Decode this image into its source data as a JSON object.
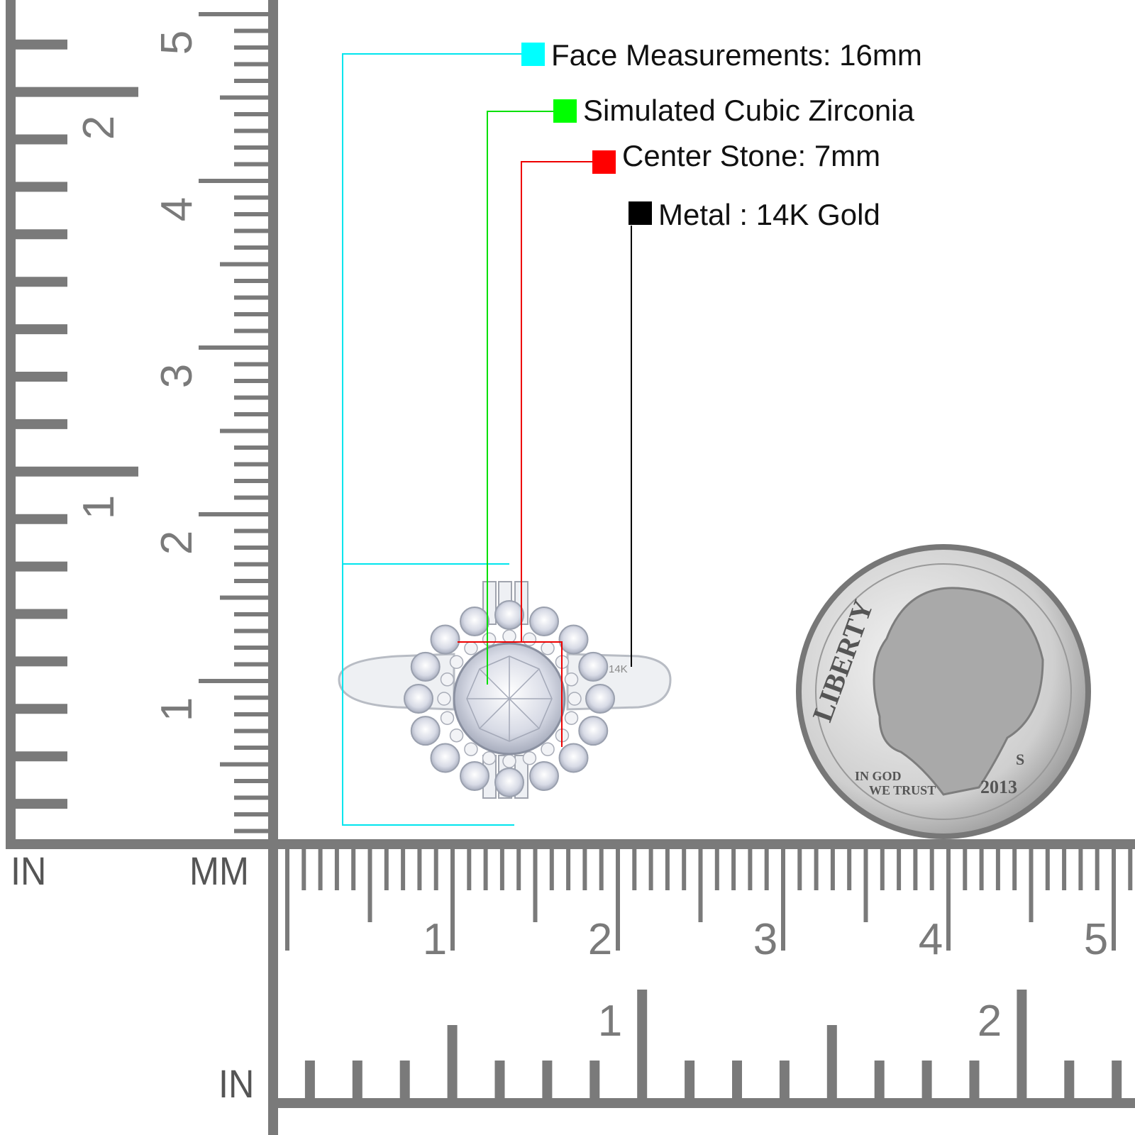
{
  "specs": [
    {
      "label": "Face Measurements: 16mm",
      "color": "#00ffff"
    },
    {
      "label": "Simulated Cubic Zirconia",
      "color": "#00ff00"
    },
    {
      "label": "Center Stone: 7mm",
      "color": "#ff0000"
    },
    {
      "label": "Metal : 14K Gold",
      "color": "#000000"
    }
  ],
  "rulers": {
    "left_unit": "IN",
    "mm_unit": "MM",
    "bottom_unit": "IN",
    "vertical_inch_labels": [
      "1",
      "2"
    ],
    "vertical_cm_labels": [
      "1",
      "2",
      "3",
      "4",
      "5"
    ],
    "horizontal_cm_labels": [
      "1",
      "2",
      "3",
      "4",
      "5"
    ],
    "horizontal_inch_labels": [
      "1",
      "2"
    ],
    "color": "#7a7a7a"
  },
  "ring": {
    "stamp": "14K"
  },
  "coin": {
    "legend": "LIBERTY",
    "motto_1": "IN GOD",
    "motto_2": "WE TRUST",
    "year": "2013",
    "mint": "S"
  }
}
